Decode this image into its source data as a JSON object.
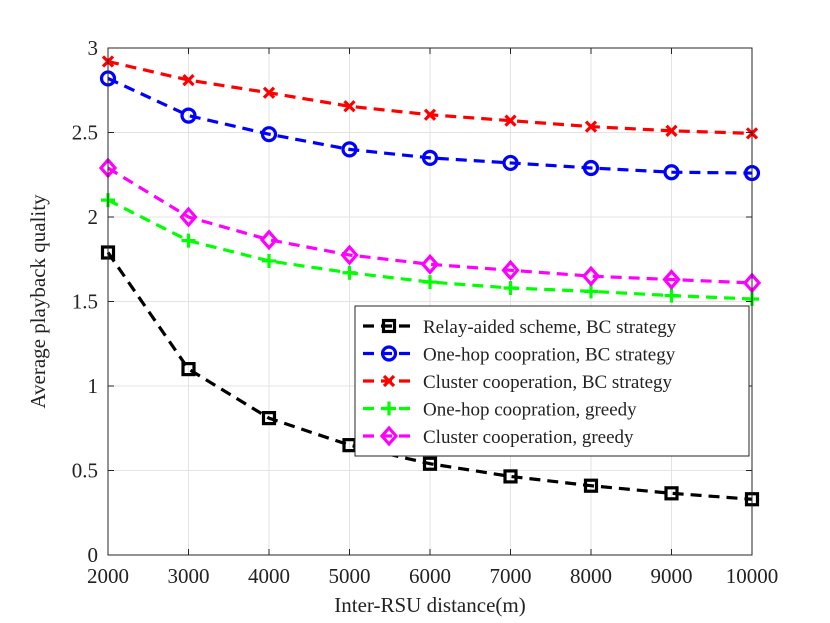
{
  "chart_data": {
    "type": "line",
    "title": "",
    "xlabel": "Inter-RSU distance(m)",
    "ylabel": "Average playback quality",
    "x": [
      2000,
      3000,
      4000,
      5000,
      6000,
      7000,
      8000,
      9000,
      10000
    ],
    "xlim": [
      2000,
      10000
    ],
    "ylim": [
      0,
      3
    ],
    "xticks": [
      "2000",
      "3000",
      "4000",
      "5000",
      "6000",
      "7000",
      "8000",
      "9000",
      "10000"
    ],
    "yticks": [
      "0",
      "0.5",
      "1",
      "1.5",
      "2",
      "2.5",
      "3"
    ],
    "grid": true,
    "legend_position": "center-right",
    "series": [
      {
        "name": "Relay-aided scheme, BC strategy",
        "color": "#000000",
        "marker": "square",
        "values": [
          1.79,
          1.1,
          0.81,
          0.65,
          0.54,
          0.465,
          0.41,
          0.365,
          0.33
        ]
      },
      {
        "name": "One-hop coopration, BC strategy",
        "color": "#0000ff",
        "marker": "circle",
        "values": [
          2.82,
          2.6,
          2.49,
          2.4,
          2.35,
          2.32,
          2.29,
          2.265,
          2.26
        ]
      },
      {
        "name": "Cluster cooperation, BC strategy",
        "color": "#ff0000",
        "marker": "x",
        "values": [
          2.92,
          2.81,
          2.735,
          2.655,
          2.605,
          2.57,
          2.535,
          2.51,
          2.495
        ]
      },
      {
        "name": "One-hop coopration, greedy",
        "color": "#00ff00",
        "marker": "plus",
        "values": [
          2.1,
          1.86,
          1.74,
          1.67,
          1.615,
          1.58,
          1.56,
          1.535,
          1.515
        ]
      },
      {
        "name": "Cluster cooperation, greedy",
        "color": "#ff00ff",
        "marker": "diamond",
        "values": [
          2.29,
          2.0,
          1.865,
          1.775,
          1.72,
          1.685,
          1.65,
          1.63,
          1.61
        ]
      }
    ]
  }
}
